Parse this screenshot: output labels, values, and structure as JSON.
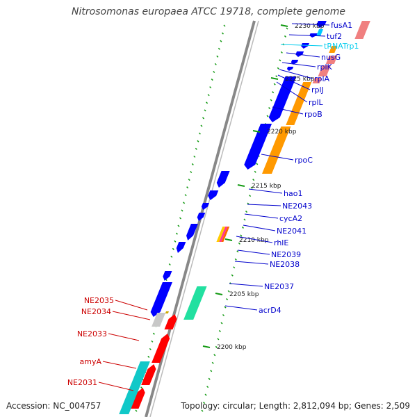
{
  "title": "Nitrosomonas europaea ATCC 19718, complete genome",
  "accession_text": "Accession: NC_004757",
  "summary_text": "Topology: circular; Length: 2,812,094 bp; Genes: 2,509",
  "colors": {
    "backbone": "#888888",
    "cds": "#0000ff",
    "rrna_like": "#f08080",
    "orange_block": "#ff9900",
    "trna": "#00c8ff",
    "cyan_block": "#10c8c8",
    "green_block": "#22e0a0",
    "red_gene": "#ff0000",
    "grey_gene": "#c8c8c8",
    "tick": "#119911",
    "label_blue": "#0000cc",
    "label_cyan": "#00ccee",
    "label_red": "#cc0000"
  },
  "ticks": [
    {
      "label": "2230 kbp"
    },
    {
      "label": "2225 kbp"
    },
    {
      "label": "2220 kbp"
    },
    {
      "label": "2215 kbp"
    },
    {
      "label": "2210 kbp"
    },
    {
      "label": "2205 kbp"
    },
    {
      "label": "2200 kbp"
    }
  ],
  "gene_labels_right": [
    {
      "name": "fusA1",
      "color": "blue"
    },
    {
      "name": "tuf2",
      "color": "blue"
    },
    {
      "name": "tRNATrp1",
      "color": "cyan"
    },
    {
      "name": "nusG",
      "color": "blue"
    },
    {
      "name": "rplK",
      "color": "blue"
    },
    {
      "name": "rplA",
      "color": "blue"
    },
    {
      "name": "rplJ",
      "color": "blue"
    },
    {
      "name": "rplL",
      "color": "blue"
    },
    {
      "name": "rpoB",
      "color": "blue"
    },
    {
      "name": "rpoC",
      "color": "blue"
    },
    {
      "name": "hao1",
      "color": "blue"
    },
    {
      "name": "NE2043",
      "color": "blue"
    },
    {
      "name": "cycA2",
      "color": "blue"
    },
    {
      "name": "NE2041",
      "color": "blue"
    },
    {
      "name": "rhlE",
      "color": "blue"
    },
    {
      "name": "NE2039",
      "color": "blue"
    },
    {
      "name": "NE2038",
      "color": "blue"
    },
    {
      "name": "NE2037",
      "color": "blue"
    },
    {
      "name": "acrD4",
      "color": "blue"
    }
  ],
  "gene_labels_left": [
    {
      "name": "NE2035",
      "color": "red"
    },
    {
      "name": "NE2034",
      "color": "red"
    },
    {
      "name": "NE2033",
      "color": "red"
    },
    {
      "name": "amyA",
      "color": "red"
    },
    {
      "name": "NE2031",
      "color": "red"
    }
  ]
}
